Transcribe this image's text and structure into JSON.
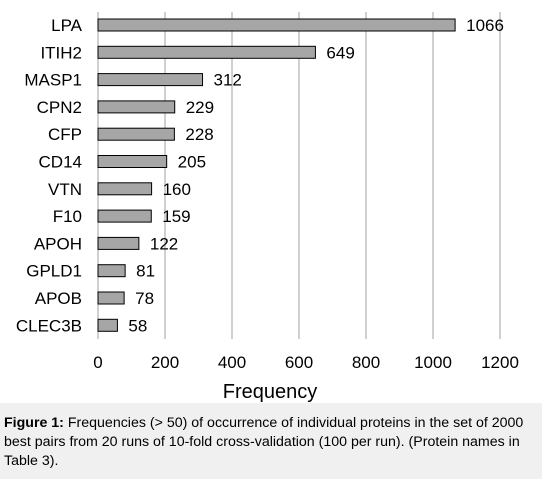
{
  "chart_data": {
    "type": "bar",
    "orientation": "horizontal",
    "categories": [
      "LPA",
      "ITIH2",
      "MASP1",
      "CPN2",
      "CFP",
      "CD14",
      "VTN",
      "F10",
      "APOH",
      "GPLD1",
      "APOB",
      "CLEC3B"
    ],
    "values": [
      1066,
      649,
      312,
      229,
      228,
      205,
      160,
      159,
      122,
      81,
      78,
      58
    ],
    "xlabel": "Frequency",
    "ylabel": "",
    "xlim": [
      0,
      1200
    ],
    "xticks": [
      "0",
      "200",
      "400",
      "600",
      "800",
      "1000",
      "1200"
    ],
    "grid": "vertical",
    "bar_color": "#a6a6a6",
    "data_labels": true
  },
  "caption": {
    "label": "Figure 1:",
    "text": "Frequencies (> 50) of occurrence of individual proteins in the set of 2000 best pairs from 20 runs of 10-fold cross-validation (100 per run).  (Protein names in Table 3)."
  }
}
